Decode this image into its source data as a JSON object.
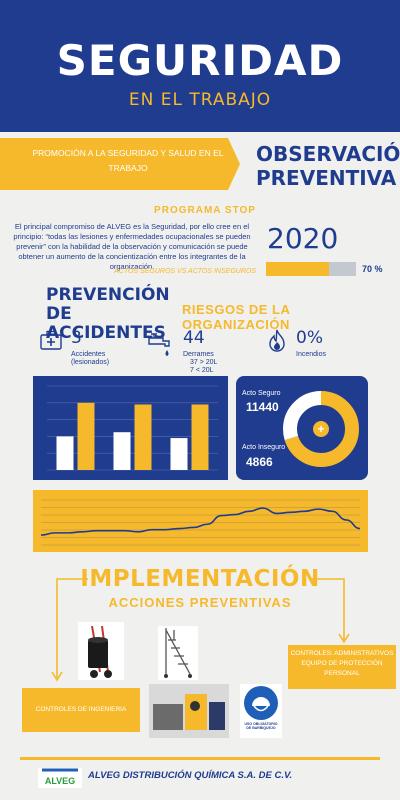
{
  "header": {
    "title": "SEGURIDAD",
    "subtitle": "EN EL TRABAJO"
  },
  "promo": {
    "text": "PROMOCIÓN A LA SEGURIDAD Y SALUD EN EL TRABAJO"
  },
  "observacion": {
    "title": "OBSERVACIÓN PREVENTIVA"
  },
  "programa": {
    "title": "PROGRAMA STOP",
    "text": "El principal compromiso de ALVEG es la Seguridad, por ello cree en el principio: “todas las lesiones y enfermedades ocupacionales se pueden prevenir” con la habilidad de la observación y comunicación se puede obtener  un aumento de la concientización entre los integrantes de la organización.",
    "tag": "ACTOS SEGUROS VS ACTOS INSEGUROS"
  },
  "progress": {
    "year": "2020",
    "percent_label": "70 %",
    "value": 0.7
  },
  "prevencion": {
    "title": "PREVENCIÓN DE ACCIDENTES"
  },
  "riesgos": {
    "title": "RIESGOS DE LA ORGANIZACIÓN"
  },
  "stats": [
    {
      "icon": "first-aid-kit-icon",
      "value": "3",
      "label1": "Accidentes",
      "label2": "(lesionados)"
    },
    {
      "icon": "faucet-drip-icon",
      "value": "44",
      "label1": "Derrames",
      "label2": "37 > 20L",
      "label3": "7 < 20L"
    },
    {
      "icon": "fire-icon",
      "value": "0%",
      "label1": "Incendios"
    }
  ],
  "colors": {
    "blue": "#1f3c8f",
    "yellow": "#f6b92b",
    "white": "#ffffff",
    "bg": "#f0f0ef"
  },
  "chart_data": [
    {
      "type": "bar",
      "categories": [
        "",
        "",
        ""
      ],
      "series": [
        {
          "values": [
            40,
            45,
            38
          ]
        },
        {
          "values": [
            80,
            78,
            78
          ]
        }
      ],
      "ylim": [
        0,
        100
      ]
    },
    {
      "type": "pie",
      "labels": [
        "Acto Seguro",
        "Acto Inseguro"
      ],
      "values": [
        11440,
        4866
      ],
      "value_labels": [
        "11440",
        "4866"
      ],
      "center_symbol": "+"
    },
    {
      "type": "line",
      "x": [
        1,
        2,
        3,
        4,
        5,
        6,
        7,
        8,
        9,
        10,
        11,
        12,
        13,
        14,
        15,
        16,
        17,
        18,
        19,
        20,
        21,
        22,
        23,
        24
      ],
      "series": [
        {
          "values": [
            12,
            14,
            14,
            15,
            16,
            16,
            16,
            15,
            17,
            17,
            18,
            19,
            22,
            30,
            31,
            34,
            37,
            32,
            33,
            34,
            36,
            34,
            26,
            18
          ]
        }
      ],
      "ylim": [
        0,
        50
      ]
    }
  ],
  "implementacion": {
    "title": "IMPLEMENTACIÓN",
    "subtitle": "ACCIONES PREVENTIVAS",
    "controles_ing": "CONTROLES DE INGENIERIA",
    "controles_adm": "CONTROLES: ADMINISTRATIVOS EQUIPO DE PROTECCIÓN PERSONAL",
    "sign_text": "USO OBLIGATORIO DE BARBIQUEJO"
  },
  "footer": {
    "logo": "ALVEG",
    "company": "ALVEG DISTRIBUCIÓN QUÍMICA S.A. DE C.V."
  }
}
